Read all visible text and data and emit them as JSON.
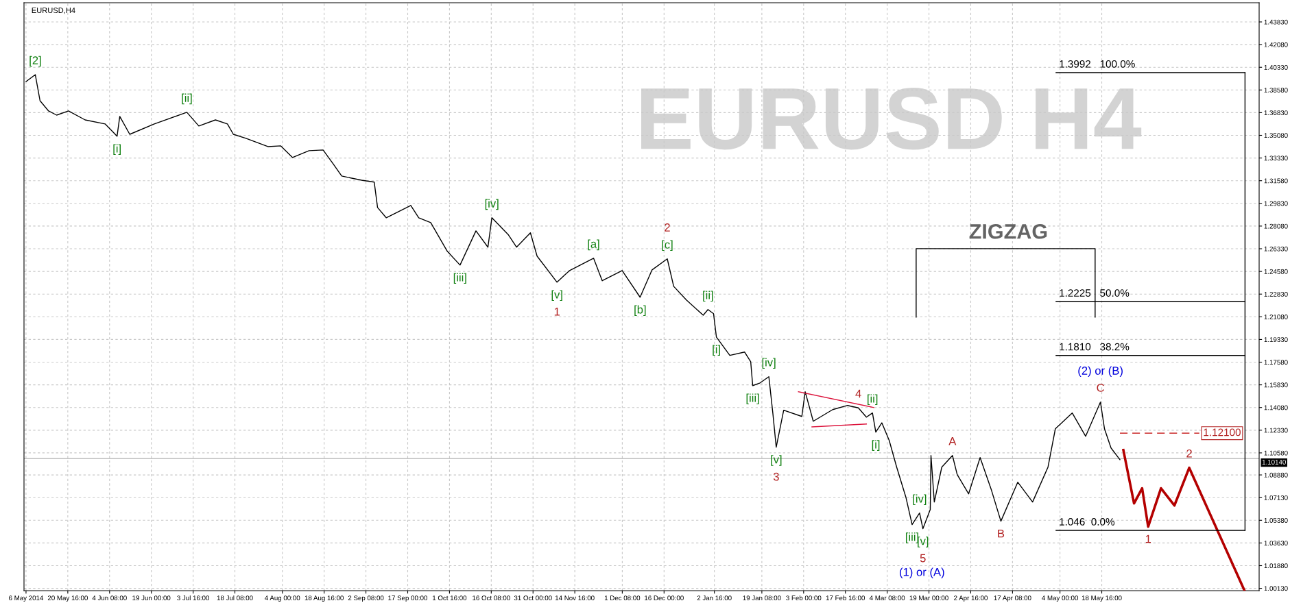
{
  "chart_data": {
    "type": "line",
    "title": "EURUSD,H4",
    "xlim": [
      "2014-05-05T07:00",
      "2015-07-12T22:00"
    ],
    "ylim": [
      0.9995,
      1.4531
    ],
    "xticks": [
      {
        "value": "2014-05-06",
        "label": "6 May 2014"
      },
      {
        "value": "2014-05-20T16:00",
        "label": "20 May 16:00"
      },
      {
        "value": "2014-06-04T08:00",
        "label": "4 Jun 08:00"
      },
      {
        "value": "2014-06-19T00:00",
        "label": "19 Jun 00:00"
      },
      {
        "value": "2014-07-03T16:00",
        "label": "3 Jul 16:00"
      },
      {
        "value": "2014-07-18T08:00",
        "label": "18 Jul 08:00"
      },
      {
        "value": "2014-08-04T00:00",
        "label": "4 Aug 00:00"
      },
      {
        "value": "2014-08-18T16:00",
        "label": "18 Aug 16:00"
      },
      {
        "value": "2014-09-02T08:00",
        "label": "2 Sep 08:00"
      },
      {
        "value": "2014-09-17T00:00",
        "label": "17 Sep 00:00"
      },
      {
        "value": "2014-10-01T16:00",
        "label": "1 Oct 16:00"
      },
      {
        "value": "2014-10-16T08:00",
        "label": "16 Oct 08:00"
      },
      {
        "value": "2014-10-31T00:00",
        "label": "31 Oct 00:00"
      },
      {
        "value": "2014-11-14T16:00",
        "label": "14 Nov 16:00"
      },
      {
        "value": "2014-12-01T08:00",
        "label": "1 Dec 08:00"
      },
      {
        "value": "2014-12-16T00:00",
        "label": "16 Dec 00:00"
      },
      {
        "value": "2015-01-02T16:00",
        "label": "2 Jan 16:00"
      },
      {
        "value": "2015-01-19T08:00",
        "label": "19 Jan 08:00"
      },
      {
        "value": "2015-02-03T00:00",
        "label": "3 Feb 00:00"
      },
      {
        "value": "2015-02-17T16:00",
        "label": "17 Feb 16:00"
      },
      {
        "value": "2015-03-04T08:00",
        "label": "4 Mar 08:00"
      },
      {
        "value": "2015-03-19T00:00",
        "label": "19 Mar 00:00"
      },
      {
        "value": "2015-04-02T16:00",
        "label": "2 Apr 16:00"
      },
      {
        "value": "2015-04-17T08:00",
        "label": "17 Apr 08:00"
      },
      {
        "value": "2015-05-04T00:00",
        "label": "4 May 00:00"
      },
      {
        "value": "2015-05-18T16:00",
        "label": "18 May 16:00"
      }
    ],
    "yticks": [
      {
        "value": 1.4383,
        "label": "1.43830"
      },
      {
        "value": 1.4208,
        "label": "1.42080"
      },
      {
        "value": 1.4033,
        "label": "1.40330"
      },
      {
        "value": 1.3858,
        "label": "1.38580"
      },
      {
        "value": 1.3683,
        "label": "1.36830"
      },
      {
        "value": 1.3508,
        "label": "1.35080"
      },
      {
        "value": 1.3333,
        "label": "1.33330"
      },
      {
        "value": 1.3158,
        "label": "1.31580"
      },
      {
        "value": 1.2983,
        "label": "1.29830"
      },
      {
        "value": 1.2808,
        "label": "1.28080"
      },
      {
        "value": 1.2633,
        "label": "1.26330"
      },
      {
        "value": 1.2458,
        "label": "1.24580"
      },
      {
        "value": 1.2283,
        "label": "1.22830"
      },
      {
        "value": 1.2108,
        "label": "1.21080"
      },
      {
        "value": 1.1933,
        "label": "1.19330"
      },
      {
        "value": 1.1758,
        "label": "1.17580"
      },
      {
        "value": 1.1583,
        "label": "1.15830"
      },
      {
        "value": 1.1408,
        "label": "1.14080"
      },
      {
        "value": 1.1233,
        "label": "1.12330"
      },
      {
        "value": 1.1058,
        "label": "1.10580"
      },
      {
        "value": 1.0888,
        "label": "1.08880"
      },
      {
        "value": 1.0713,
        "label": "1.07130"
      },
      {
        "value": 1.0538,
        "label": "1.05380"
      },
      {
        "value": 1.0363,
        "label": "1.03630"
      },
      {
        "value": 1.0188,
        "label": "1.01880"
      },
      {
        "value": 1.0013,
        "label": "1.00130"
      }
    ],
    "grid": true,
    "marker": "none",
    "ref_lines": [
      {
        "axis": "y",
        "value": 1.1014,
        "label": "1.10140",
        "color": "#c0c0c0"
      }
    ],
    "series": [
      {
        "color": "#000000",
        "x": [
          "2014-05-06T00:00",
          "2014-05-09T06:00",
          "2014-05-10T22:00",
          "2014-05-13T22:00",
          "2014-05-16T18:00",
          "2014-05-20T22:00",
          "2014-05-26T18:00",
          "2014-06-02T18:00",
          "2014-06-06T23:00",
          "2014-06-07T22:00",
          "2014-06-11T10:00",
          "2014-06-20T01:00",
          "2014-07-01T11:00",
          "2014-07-05T16:00",
          "2014-07-11T12:00",
          "2014-07-15T17:00",
          "2014-07-17T19:00",
          "2014-07-22T05:00",
          "2014-07-29T22:00",
          "2014-08-03T09:00",
          "2014-08-07T13:00",
          "2014-08-13T09:00",
          "2014-08-18T07:00",
          "2014-08-21T19:00",
          "2014-08-24T20:00",
          "2014-08-31T20:00",
          "2014-09-05T06:00",
          "2014-09-06T10:00",
          "2014-09-09T11:00",
          "2014-09-18T02:00",
          "2014-09-20T21:00",
          "2014-09-25T02:00",
          "2014-09-30T22:00",
          "2014-10-05T09:00",
          "2014-10-10T23:00",
          "2014-10-15T04:00",
          "2014-10-16T13:00",
          "2014-10-22T09:00",
          "2014-10-25T05:00",
          "2014-10-30T02:00",
          "2014-11-01T10:00",
          "2014-11-08T10:00",
          "2014-11-12T20:00",
          "2014-11-21T06:00",
          "2014-11-24T07:00",
          "2014-12-01T07:00",
          "2014-12-07T14:00",
          "2014-12-11T19:00",
          "2014-12-17T03:00",
          "2014-12-19T09:00",
          "2014-12-23T20:00",
          "2014-12-29T18:00",
          "2014-12-31T10:00",
          "2015-01-02T09:00",
          "2015-01-03T09:00",
          "2015-01-08T02:00",
          "2015-01-13T07:00",
          "2015-01-15T10:00",
          "2015-01-16T03:00",
          "2015-01-18T17:00",
          "2015-01-21T19:00",
          "2015-01-23T05:00",
          "2015-01-24T09:00",
          "2015-01-27T00:00",
          "2015-02-02T09:00",
          "2015-02-03T13:00",
          "2015-02-06T09:00",
          "2015-02-13T05:00",
          "2015-02-18T10:00",
          "2015-02-22T05:00",
          "2015-02-25T01:00",
          "2015-02-27T04:00",
          "2015-02-28T08:00",
          "2015-03-02T11:00",
          "2015-03-05T01:00",
          "2015-03-07T16:00",
          "2015-03-10T23:00",
          "2015-03-13T02:00",
          "2015-03-15T17:00",
          "2015-03-16T21:00",
          "2015-03-19T11:00",
          "2015-03-19T17:00",
          "2015-03-20T21:00",
          "2015-03-23T12:00",
          "2015-03-27T06:00",
          "2015-03-28T22:00",
          "2015-04-01T22:00",
          "2015-04-05T23:00",
          "2015-04-09T23:00",
          "2015-04-13T06:00",
          "2015-04-19T04:00",
          "2015-04-24T09:00",
          "2015-04-29T19:00",
          "2015-05-02T09:00",
          "2015-05-08T07:00",
          "2015-05-13T00:00",
          "2015-05-18T05:00",
          "2015-05-19T15:00",
          "2015-05-21T22:00",
          "2015-05-25T01:00"
        ],
        "values": [
          1.3923,
          1.3976,
          1.3775,
          1.3696,
          1.3664,
          1.3696,
          1.3627,
          1.3596,
          1.3501,
          1.3654,
          1.3516,
          1.3596,
          1.3686,
          1.358,
          1.3627,
          1.3596,
          1.3516,
          1.3485,
          1.3421,
          1.3427,
          1.3337,
          1.339,
          1.3395,
          1.3289,
          1.3194,
          1.3162,
          1.3147,
          1.2951,
          1.2872,
          1.2967,
          1.2872,
          1.2835,
          1.2613,
          1.2507,
          1.2771,
          1.2645,
          1.2872,
          1.274,
          1.2645,
          1.2756,
          1.2576,
          1.2375,
          1.2465,
          1.256,
          1.2386,
          1.2465,
          1.2259,
          1.247,
          1.2555,
          1.2343,
          1.2238,
          1.212,
          1.2164,
          1.2132,
          1.1952,
          1.181,
          1.1836,
          1.1762,
          1.1577,
          1.1598,
          1.1646,
          1.1361,
          1.1102,
          1.1387,
          1.1339,
          1.153,
          1.1302,
          1.1392,
          1.1424,
          1.1405,
          1.1334,
          1.1366,
          1.1218,
          1.129,
          1.1154,
          1.0948,
          1.0711,
          1.0505,
          1.0594,
          1.0473,
          1.0621,
          1.1038,
          1.0679,
          1.0948,
          1.1038,
          1.089,
          1.0742,
          1.1022,
          1.0769,
          1.0531,
          1.0832,
          1.0679,
          1.0948,
          1.1244,
          1.1366,
          1.1186,
          1.145,
          1.1244,
          1.1096,
          1.1006
        ]
      },
      {
        "color": "#b40000",
        "x": [
          "2015-05-26T06:00",
          "2015-05-30T00:00",
          "2015-06-01T20:00",
          "2015-06-03T23:00",
          "2015-06-08T11:00",
          "2015-06-13T04:00",
          "2015-06-18T09:00",
          "2015-07-07T18:00"
        ],
        "values": [
          1.108,
          1.0668,
          1.0785,
          1.0489,
          1.0785,
          1.0652,
          1.0943,
          0.9997
        ]
      },
      {
        "color": "#dc143c",
        "x": [
          "2015-02-01T04:00",
          "2015-02-27T15:00"
        ],
        "values": [
          1.153,
          1.1408
        ]
      },
      {
        "color": "#dc143c",
        "x": [
          "2015-02-05T22:00",
          "2015-02-25T01:00"
        ],
        "values": [
          1.1259,
          1.1281
        ]
      },
      {
        "color": "#c00000",
        "line_style": "dashed",
        "x": [
          "2015-05-25T01:00",
          "2015-06-21T22:00"
        ],
        "values": [
          1.121,
          1.121
        ]
      },
      {
        "color": "#000000",
        "x": [
          "2015-05-02T15:00",
          "2015-07-07T23:00"
        ],
        "values": [
          1.3992,
          1.3992
        ]
      },
      {
        "color": "#000000",
        "x": [
          "2015-05-02T15:00",
          "2015-07-07T23:00"
        ],
        "values": [
          1.2225,
          1.2225
        ]
      },
      {
        "color": "#000000",
        "x": [
          "2015-05-02T15:00",
          "2015-07-07T23:00"
        ],
        "values": [
          1.181,
          1.181
        ]
      },
      {
        "color": "#000000",
        "x": [
          "2015-05-02T15:00",
          "2015-07-07T23:00"
        ],
        "values": [
          1.046,
          1.046
        ]
      },
      {
        "color": "#000000",
        "x": [
          "2015-07-07T23:00",
          "2015-07-07T23:00"
        ],
        "values": [
          1.3992,
          1.046
        ]
      },
      {
        "color": "#000000",
        "x": [
          "2015-03-14T12:00",
          "2015-03-14T12:00",
          "2015-05-16T08:00",
          "2015-05-16T08:00"
        ],
        "values": [
          1.2106,
          1.2634,
          1.2634,
          1.2106
        ]
      }
    ],
    "annotations": [
      "EURUSD H4",
      "ZIGZAG",
      {
        "text": "[2]",
        "x": "2014-05-09T06:00",
        "y": 1.3976
      },
      {
        "text": "[i]",
        "x": "2014-06-06T23:00",
        "y": 1.3501
      },
      {
        "text": "[ii]",
        "x": "2014-07-01T11:00",
        "y": 1.3686
      },
      {
        "text": "[iii]",
        "x": "2014-10-05T09:00",
        "y": 1.2507
      },
      {
        "text": "[iv]",
        "x": "2014-10-16T13:00",
        "y": 1.2872
      },
      {
        "text": "[v]",
        "x": "2014-11-08T10:00",
        "y": 1.2375
      },
      {
        "text": "1",
        "x": "2014-11-08T10:00",
        "y": 1.2375
      },
      {
        "text": "[a]",
        "x": "2014-11-21T06:00",
        "y": 1.256
      },
      {
        "text": "[b]",
        "x": "2014-12-07T14:00",
        "y": 1.2259
      },
      {
        "text": "[c]",
        "x": "2014-12-17T03:00",
        "y": 1.2555
      },
      {
        "text": "2",
        "x": "2014-12-17T03:00",
        "y": 1.2555
      },
      {
        "text": "[ii]",
        "x": "2014-12-31T10:00",
        "y": 1.2164
      },
      {
        "text": "[i]",
        "x": "2015-01-03T09:00",
        "y": 1.1952
      },
      {
        "text": "[iii]",
        "x": "2015-01-16T03:00",
        "y": 1.1577
      },
      {
        "text": "[iv]",
        "x": "2015-01-21T19:00",
        "y": 1.1646
      },
      {
        "text": "[v]",
        "x": "2015-01-24T09:00",
        "y": 1.1102
      },
      {
        "text": "3",
        "x": "2015-01-24T09:00",
        "y": 1.1102
      },
      {
        "text": "4",
        "x": "2015-02-22T05:00",
        "y": 1.1405
      },
      {
        "text": "[ii]",
        "x": "2015-02-27T04:00",
        "y": 1.1366
      },
      {
        "text": "[i]",
        "x": "2015-02-28T08:00",
        "y": 1.1218
      },
      {
        "text": "[iii]",
        "x": "2015-03-13T02:00",
        "y": 1.0505
      },
      {
        "text": "[iv]",
        "x": "2015-03-15T17:00",
        "y": 1.0594
      },
      {
        "text": "[v]",
        "x": "2015-03-16T21:00",
        "y": 1.0473
      },
      {
        "text": "5",
        "x": "2015-03-16T21:00",
        "y": 1.0473
      },
      "(1) or (A)",
      {
        "text": "A",
        "x": "2015-03-27T06:00",
        "y": 1.1038
      },
      {
        "text": "B",
        "x": "2015-04-13T06:00",
        "y": 1.0531
      },
      {
        "text": "C",
        "x": "2015-05-18T05:00",
        "y": 1.145
      },
      {
        "text": "(2) or (B)",
        "x": "2015-05-18T05:00",
        "y": 1.145
      },
      {
        "text": "1",
        "x": "2015-06-03T23:00",
        "y": 1.0489
      },
      {
        "text": "2",
        "x": "2015-06-18T09:00",
        "y": 1.0943
      },
      {
        "text": "1.3992   100.0%",
        "x": "2015-05-02T15:00",
        "y": 1.3992
      },
      {
        "text": "1.2225   50.0%",
        "x": "2015-05-02T15:00",
        "y": 1.2225
      },
      {
        "text": "1.1810   38.2%",
        "x": "2015-05-02T15:00",
        "y": 1.181
      },
      {
        "text": "1.046  0.0%",
        "x": "2015-05-02T15:00",
        "y": 1.046
      },
      {
        "text": "1.12100",
        "x": "2015-06-21T22:00",
        "y": 1.121
      }
    ]
  }
}
